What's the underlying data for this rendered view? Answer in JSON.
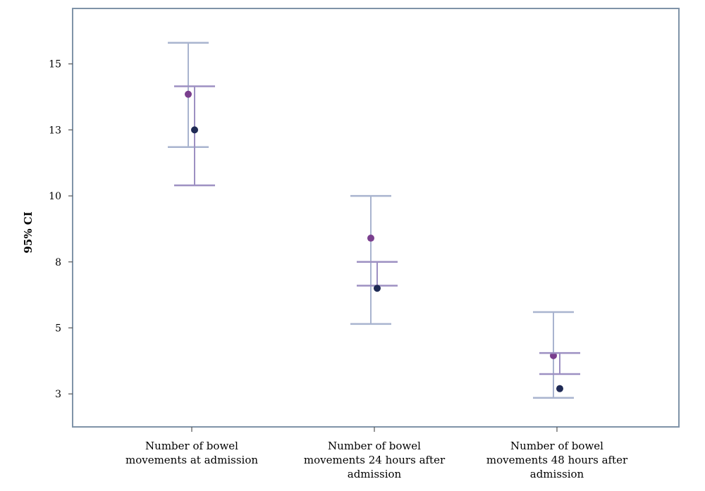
{
  "chart_data": {
    "type": "scatter",
    "title": "",
    "xlabel": "",
    "ylabel": "95% CI",
    "categories": [
      "Number of bowel movements at admission",
      "Number of bowel movements 24 hours after admission",
      "Number of bowel movements 48 hours after admission"
    ],
    "category_label_lines": [
      [
        "Number of bowel",
        "movements at admission"
      ],
      [
        "Number of bowel",
        "movements 24 hours after",
        "admission"
      ],
      [
        "Number of bowel",
        "movements 48 hours after",
        "admission"
      ]
    ],
    "yticks": [
      {
        "value": 2.5,
        "label": "3"
      },
      {
        "value": 5,
        "label": "5"
      },
      {
        "value": 7.5,
        "label": "8"
      },
      {
        "value": 10,
        "label": "10"
      },
      {
        "value": 12.5,
        "label": "13"
      },
      {
        "value": 15,
        "label": "15"
      }
    ],
    "ylim": [
      1.25,
      17.1
    ],
    "grid": false,
    "series": [
      {
        "color": "#7a3f8e",
        "bar_color": "#a9b4cf",
        "means": [
          13.85,
          8.4,
          3.95
        ],
        "lower": [
          11.85,
          5.15,
          2.35
        ],
        "upper": [
          15.8,
          10.0,
          5.6
        ]
      },
      {
        "color": "#1f2a55",
        "bar_color": "#9d90c2",
        "means": [
          12.5,
          6.5,
          2.7
        ],
        "lower": [
          10.4,
          6.6,
          3.25
        ],
        "upper": [
          14.15,
          7.5,
          4.05
        ]
      }
    ]
  }
}
